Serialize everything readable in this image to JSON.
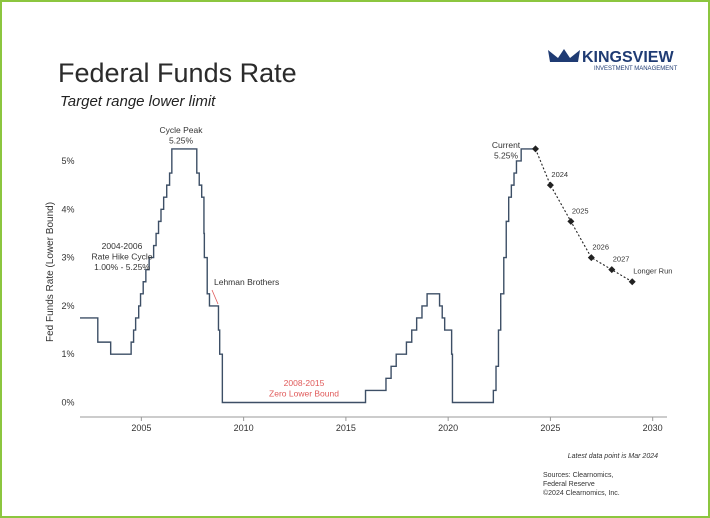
{
  "chart_data": {
    "type": "line",
    "title": "Federal Funds Rate",
    "subtitle": "Target range lower limit",
    "logo": {
      "name": "KINGSVIEW",
      "tagline": "INVESTMENT MANAGEMENT"
    },
    "ylabel": "Fed Funds Rate (Lower Bound)",
    "xlim": [
      2002,
      2030.7
    ],
    "xticks": [
      2005,
      2010,
      2015,
      2020,
      2025,
      2030
    ],
    "ylim": [
      -0.3,
      5.6
    ],
    "yticks": [
      {
        "value": 0,
        "label": "0%"
      },
      {
        "value": 1,
        "label": "1%"
      },
      {
        "value": 2,
        "label": "2%"
      },
      {
        "value": 3,
        "label": "3%"
      },
      {
        "value": 4,
        "label": "4%"
      },
      {
        "value": 5,
        "label": "5%"
      }
    ],
    "series": [
      {
        "color": "#3d4f66",
        "step": true,
        "x": [
          2002.0,
          2002.87,
          2003.5,
          2004.5,
          2004.62,
          2004.72,
          2004.87,
          2004.96,
          2005.09,
          2005.22,
          2005.38,
          2005.6,
          2005.72,
          2005.84,
          2005.96,
          2006.09,
          2006.24,
          2006.38,
          2006.49,
          2007.71,
          2007.83,
          2007.95,
          2008.06,
          2008.08,
          2008.22,
          2008.33,
          2008.77,
          2008.83,
          2008.96,
          2015.96,
          2016.96,
          2017.21,
          2017.46,
          2017.96,
          2018.22,
          2018.46,
          2018.72,
          2018.97,
          2019.58,
          2019.71,
          2019.83,
          2020.17,
          2020.21,
          2022.21,
          2022.34,
          2022.46,
          2022.57,
          2022.72,
          2022.84,
          2022.96,
          2023.09,
          2023.22,
          2023.34,
          2023.57,
          2024.17
        ],
        "values": [
          1.75,
          1.25,
          1.0,
          1.25,
          1.5,
          1.75,
          2.0,
          2.25,
          2.5,
          2.75,
          3.0,
          3.25,
          3.5,
          3.75,
          4.0,
          4.25,
          4.5,
          4.75,
          5.25,
          4.75,
          4.5,
          4.25,
          3.5,
          3.0,
          2.25,
          2.0,
          1.5,
          1.0,
          0.0,
          0.25,
          0.5,
          0.75,
          1.0,
          1.25,
          1.5,
          1.75,
          2.0,
          2.25,
          2.0,
          1.75,
          1.5,
          1.0,
          0.0,
          0.25,
          0.75,
          1.5,
          2.25,
          3.0,
          3.75,
          4.25,
          4.5,
          4.75,
          5.0,
          5.25,
          5.25
        ]
      },
      {
        "color": "#222222",
        "dashed": true,
        "x": [
          2024.27,
          2025.0,
          2026.0,
          2027.0,
          2028.0,
          2029.0
        ],
        "values": [
          5.25,
          4.5,
          3.75,
          3.0,
          2.75,
          2.5
        ],
        "point_labels": [
          null,
          "2024",
          "2025",
          "2026",
          "2027",
          "Longer Run"
        ]
      }
    ],
    "annotations": [
      {
        "lines": [
          "Cycle Peak",
          "5.25%"
        ]
      },
      {
        "lines": [
          "2004-2006",
          "Rate Hike Cycle",
          "1.00% - 5.25%"
        ]
      },
      {
        "lines": [
          "Lehman Brothers"
        ]
      },
      {
        "lines": [
          "2008-2015",
          "Zero Lower Bound"
        ],
        "color": "#e05a5a"
      },
      {
        "lines": [
          "Current",
          "5.25%"
        ]
      }
    ],
    "footnote": "Latest data point is Mar 2024",
    "sources": [
      "Sources: Clearnomics,",
      "Federal Reserve",
      "©2024 Clearnomics, Inc."
    ]
  }
}
